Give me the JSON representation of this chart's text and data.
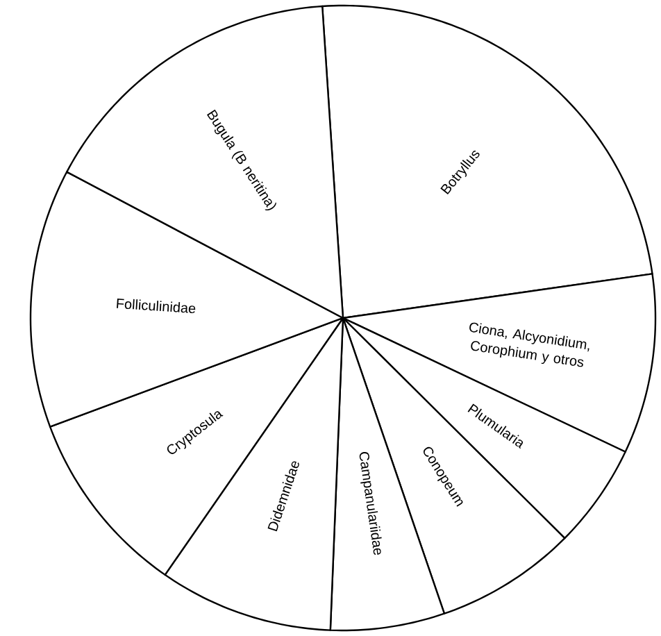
{
  "chart_data": {
    "type": "pie",
    "categories": [
      "Botryllus",
      "Ciona, Alcyonidium, Corophium y otros",
      "Plumularia",
      "Conopeum",
      "Campanulariidae",
      "Didemnidae",
      "Cryptosula",
      "Folliculinidae",
      "Bugula (B neritina)"
    ],
    "values": [
      23.8,
      9.3,
      5.4,
      7.3,
      5.9,
      9.0,
      9.7,
      13.4,
      16.2
    ],
    "colors": [
      "#ffffff",
      "#ffffff",
      "#ffffff",
      "#ffffff",
      "#ffffff",
      "#ffffff",
      "#ffffff",
      "#ffffff",
      "#ffffff"
    ]
  }
}
